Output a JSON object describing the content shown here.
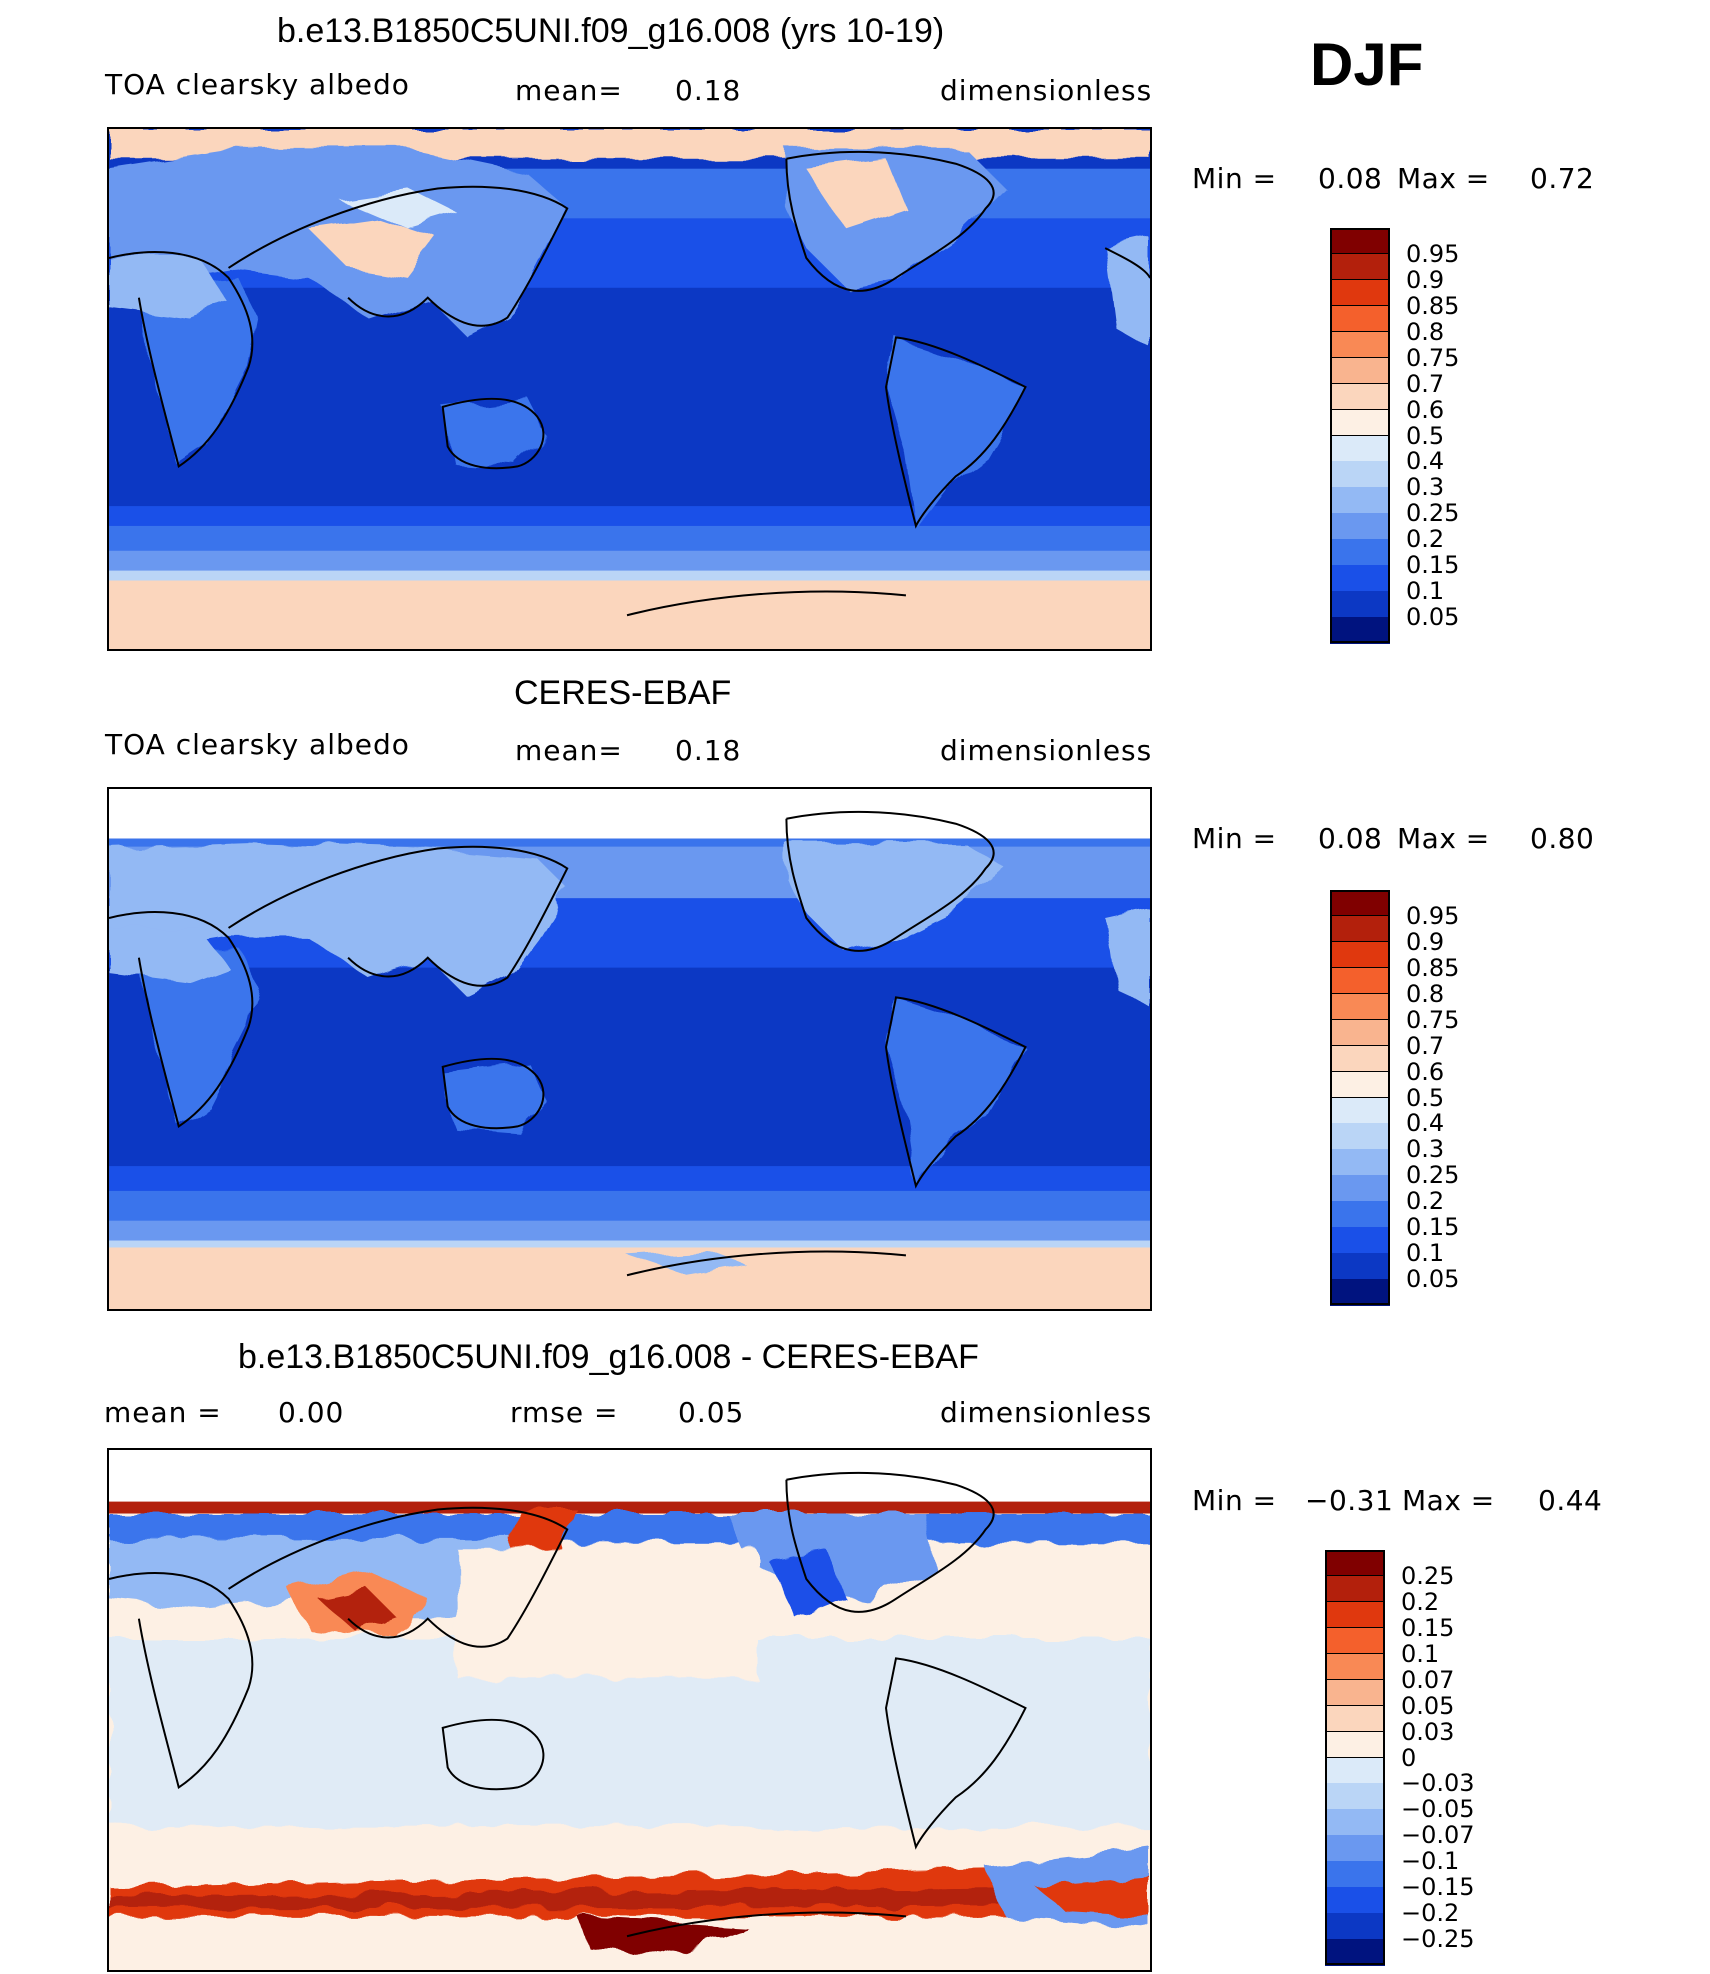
{
  "season": "DJF",
  "panels": [
    {
      "title": "b.e13.B1850C5UNI.f09_g16.008 (yrs 10-19)",
      "left_label": "TOA clearsky albedo",
      "mid_label": "mean=",
      "mid_value": "0.18",
      "units": "dimensionless",
      "min_label": "Min =",
      "min_value": "0.08",
      "max_label": "Max =",
      "max_value": "0.72",
      "colorbar": {
        "levels": [
          "0.95",
          "0.9",
          "0.85",
          "0.8",
          "0.75",
          "0.7",
          "0.6",
          "0.5",
          "0.4",
          "0.3",
          "0.25",
          "0.2",
          "0.15",
          "0.1",
          "0.05"
        ],
        "colors": [
          "#800000",
          "#b3200c",
          "#e0380e",
          "#f4602c",
          "#f98955",
          "#f9b48f",
          "#fbd6bd",
          "#fdf0e4",
          "#dbeaf9",
          "#bad5f6",
          "#93b9f4",
          "#6a98f0",
          "#3a74ec",
          "#1a50e8",
          "#0c38c4",
          "#00137f"
        ]
      }
    },
    {
      "title": "CERES-EBAF",
      "left_label": "TOA clearsky albedo",
      "mid_label": "mean=",
      "mid_value": "0.18",
      "units": "dimensionless",
      "min_label": "Min =",
      "min_value": "0.08",
      "max_label": "Max =",
      "max_value": "0.80",
      "colorbar": {
        "levels": [
          "0.95",
          "0.9",
          "0.85",
          "0.8",
          "0.75",
          "0.7",
          "0.6",
          "0.5",
          "0.4",
          "0.3",
          "0.25",
          "0.2",
          "0.15",
          "0.1",
          "0.05"
        ],
        "colors": [
          "#800000",
          "#b3200c",
          "#e0380e",
          "#f4602c",
          "#f98955",
          "#f9b48f",
          "#fbd6bd",
          "#fdf0e4",
          "#dbeaf9",
          "#bad5f6",
          "#93b9f4",
          "#6a98f0",
          "#3a74ec",
          "#1a50e8",
          "#0c38c4",
          "#00137f"
        ]
      }
    },
    {
      "title": "b.e13.B1850C5UNI.f09_g16.008 - CERES-EBAF",
      "left_label": "mean =",
      "left_value": "0.00",
      "mid_label": "rmse =",
      "mid_value": "0.05",
      "units": "dimensionless",
      "min_label": "Min =",
      "min_value": "−0.31",
      "max_label": "Max =",
      "max_value": "0.44",
      "colorbar": {
        "levels": [
          "0.25",
          "0.2",
          "0.15",
          "0.1",
          "0.07",
          "0.05",
          "0.03",
          "0",
          "−0.03",
          "−0.05",
          "−0.07",
          "−0.1",
          "−0.15",
          "−0.2",
          "−0.25"
        ],
        "colors": [
          "#800000",
          "#b3200c",
          "#e0380e",
          "#f4602c",
          "#f98955",
          "#f9b48f",
          "#fbd6bd",
          "#fdf0e4",
          "#dbeaf9",
          "#bad5f6",
          "#93b9f4",
          "#6a98f0",
          "#3a74ec",
          "#1a50e8",
          "#0c38c4",
          "#00137f"
        ]
      }
    }
  ]
}
